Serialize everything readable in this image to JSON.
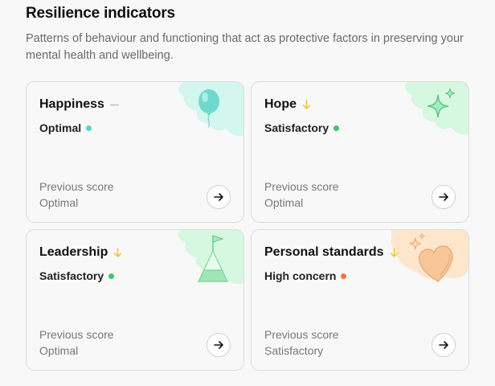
{
  "section": {
    "title": "Resilience indicators",
    "description": "Patterns of behaviour and functioning that act as protective factors in preserving your mental health and wellbeing."
  },
  "colors": {
    "optimal": "#4fd8c8",
    "satisfactory": "#3ec46d",
    "high_concern": "#f2733a",
    "trend_down": "#f2c230",
    "trend_flat": "#bdbdbd"
  },
  "cards": [
    {
      "name": "Happiness",
      "trend": "flat",
      "trend_icon": "dash-icon",
      "status": "Optimal",
      "status_color": "#4fd8c8",
      "prev_label": "Previous score",
      "prev_value": "Optimal",
      "illustration": "balloon-icon"
    },
    {
      "name": "Hope",
      "trend": "down",
      "trend_icon": "arrow-down-icon",
      "status": "Satisfactory",
      "status_color": "#3ec46d",
      "prev_label": "Previous score",
      "prev_value": "Optimal",
      "illustration": "sparkle-icon"
    },
    {
      "name": "Leadership",
      "trend": "down",
      "trend_icon": "arrow-down-icon",
      "status": "Satisfactory",
      "status_color": "#3ec46d",
      "prev_label": "Previous score",
      "prev_value": "Optimal",
      "illustration": "mountain-flag-icon"
    },
    {
      "name": "Personal standards",
      "trend": "down",
      "trend_icon": "arrow-down-icon",
      "status": "High concern",
      "status_color": "#f2733a",
      "prev_label": "Previous score",
      "prev_value": "Satisfactory",
      "illustration": "heart-icon"
    }
  ]
}
